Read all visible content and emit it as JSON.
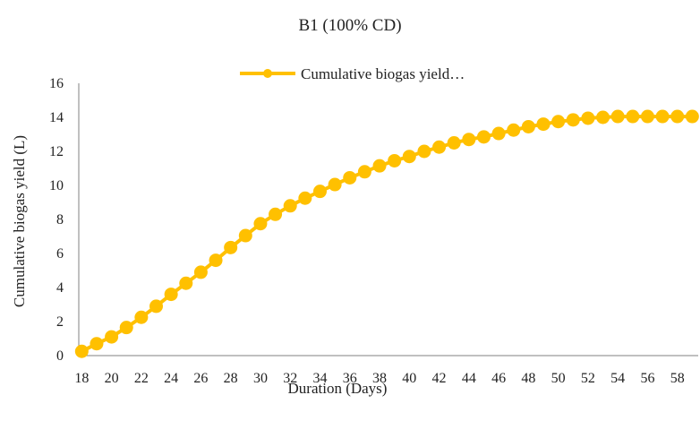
{
  "chart_data": {
    "type": "line",
    "title": "B1 (100% CD)",
    "xlabel": "Duration (Days)",
    "ylabel": "Cumulative biogas yield (L)",
    "ylim": [
      0,
      16
    ],
    "yticks": [
      "0",
      "2",
      "4",
      "6",
      "8",
      "10",
      "12",
      "14",
      "16"
    ],
    "xticks": [
      "18",
      "20",
      "22",
      "24",
      "26",
      "28",
      "30",
      "32",
      "34",
      "36",
      "38",
      "40",
      "42",
      "44",
      "46",
      "48",
      "50",
      "52",
      "54",
      "56",
      "58"
    ],
    "grid": false,
    "legend_position": "top",
    "colors": {
      "series": "#FFC000",
      "axis": "#808080"
    },
    "x": [
      18,
      19,
      20,
      21,
      22,
      23,
      24,
      25,
      26,
      27,
      28,
      29,
      30,
      31,
      32,
      33,
      34,
      35,
      36,
      37,
      38,
      39,
      40,
      41,
      42,
      43,
      44,
      45,
      46,
      47,
      48,
      49,
      50,
      51,
      52,
      53,
      54,
      55,
      56,
      57,
      58,
      59
    ],
    "series": [
      {
        "name": "Cumulative biogas yield…",
        "values": [
          0.25,
          0.7,
          1.1,
          1.65,
          2.25,
          2.9,
          3.6,
          4.25,
          4.9,
          5.6,
          6.35,
          7.05,
          7.75,
          8.3,
          8.8,
          9.25,
          9.65,
          10.05,
          10.45,
          10.8,
          11.15,
          11.45,
          11.7,
          12.0,
          12.25,
          12.5,
          12.7,
          12.85,
          13.05,
          13.25,
          13.45,
          13.6,
          13.75,
          13.85,
          13.95,
          14.0,
          14.05,
          14.05,
          14.05,
          14.05,
          14.05,
          14.05
        ]
      }
    ]
  }
}
